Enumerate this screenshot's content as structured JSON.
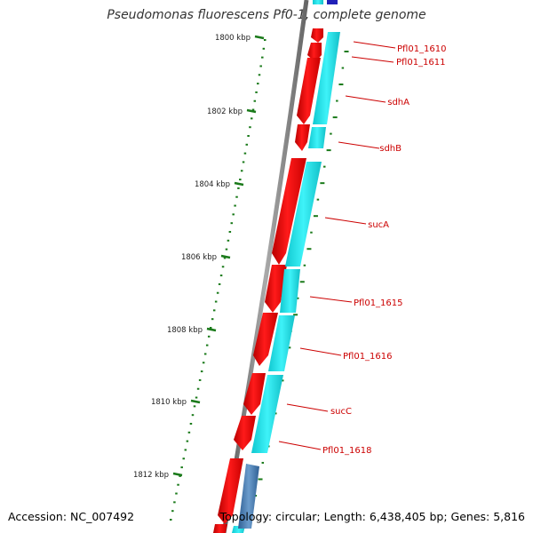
{
  "title": "Pseudomonas fluorescens Pf0-1, complete genome",
  "accession": "Accession: NC_007492",
  "topology_info": "Topology: circular; Length: 6,438,405 bp; Genes: 5,816",
  "colors": {
    "forward_gene": "#ee0000",
    "reverse_cds": "#22e6ee",
    "tick": "#1a7a1a",
    "label": "#cc0000",
    "backbone": "#8a8a8a",
    "blue_feature": "#3a6ea5",
    "top_feature": "#1a1aa0"
  },
  "scale_labels": [
    "1800 kbp",
    "1802 kbp",
    "1804 kbp",
    "1806 kbp",
    "1808 kbp",
    "1810 kbp",
    "1812 kbp"
  ],
  "genes": [
    {
      "name": "Pfl01_1610"
    },
    {
      "name": "Pfl01_1611"
    },
    {
      "name": "sdhA"
    },
    {
      "name": "sdhB"
    },
    {
      "name": "sucA"
    },
    {
      "name": "Pfl01_1615"
    },
    {
      "name": "Pfl01_1616"
    },
    {
      "name": "sucC"
    },
    {
      "name": "Pfl01_1618"
    }
  ]
}
